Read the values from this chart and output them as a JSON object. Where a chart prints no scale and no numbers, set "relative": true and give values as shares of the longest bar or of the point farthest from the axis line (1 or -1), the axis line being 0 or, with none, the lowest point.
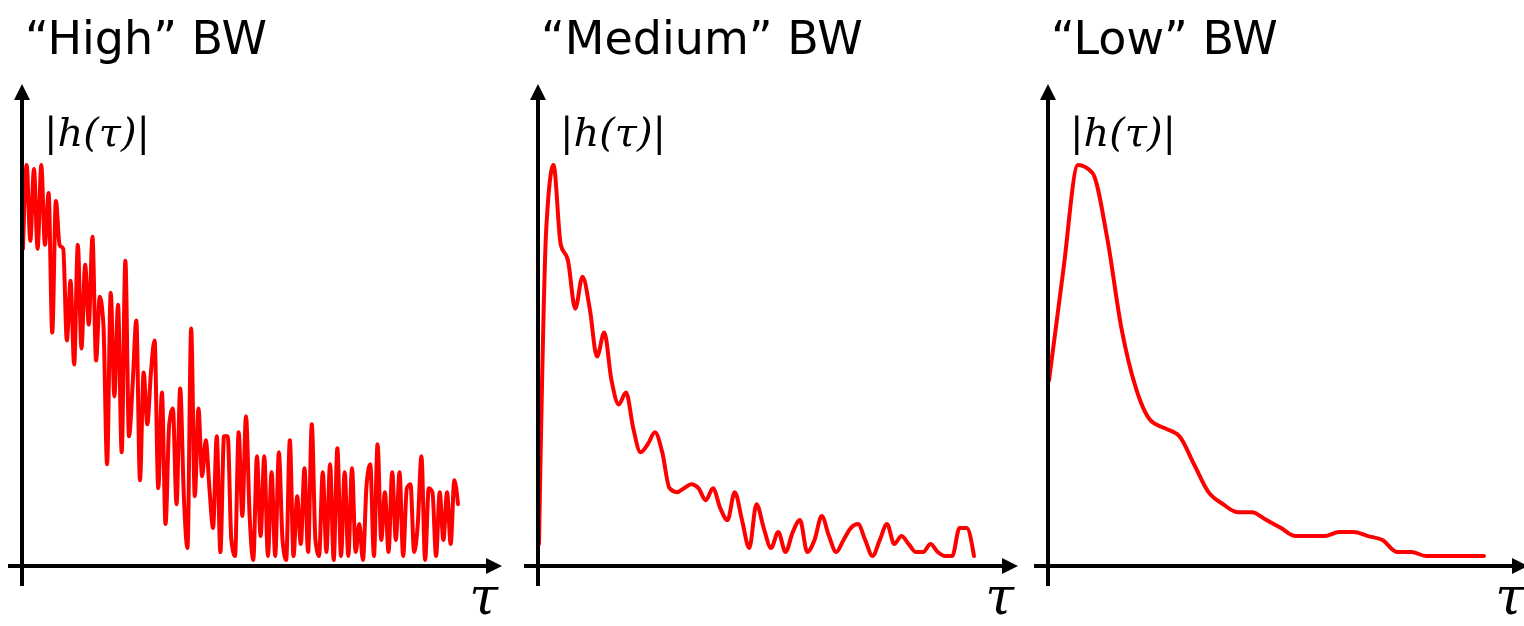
{
  "chart_data": [
    {
      "type": "line",
      "title": "“High” BW",
      "ylabel": "|h(τ)|",
      "xlabel": "τ",
      "relative": true,
      "categories": [
        null,
        null,
        null,
        null,
        null,
        null,
        null,
        null,
        null,
        null,
        null,
        null,
        null,
        null,
        null,
        null,
        null,
        null,
        null,
        null,
        null,
        null,
        null,
        null,
        null,
        null,
        null,
        null,
        null,
        null,
        null,
        null,
        null,
        null,
        null,
        null,
        null,
        null,
        null,
        null,
        null,
        null,
        null,
        null,
        null,
        null,
        null,
        null,
        null,
        null,
        null,
        null,
        null,
        null,
        null,
        null,
        null,
        null,
        null,
        null,
        null,
        null,
        null,
        null,
        null,
        null,
        null,
        null,
        null,
        null,
        null,
        null,
        null,
        null,
        null,
        null,
        null,
        null,
        null,
        null,
        null,
        null,
        null,
        null,
        null,
        null,
        null,
        null,
        null,
        null,
        null,
        null,
        null,
        null,
        null,
        null,
        null,
        null,
        null,
        null,
        null,
        null,
        null,
        null,
        null,
        null,
        null,
        null,
        null,
        null,
        null,
        null,
        null,
        null,
        null,
        null,
        null,
        null,
        null,
        null
      ],
      "series": [
        {
          "color": "#ff0000",
          "values": [
            0.79,
            1.0,
            0.81,
            0.99,
            0.79,
            1.0,
            0.8,
            0.93,
            0.58,
            0.91,
            0.8,
            0.79,
            0.56,
            0.71,
            0.5,
            0.8,
            0.54,
            0.75,
            0.6,
            0.82,
            0.51,
            0.67,
            0.6,
            0.25,
            0.68,
            0.42,
            0.65,
            0.28,
            0.76,
            0.32,
            0.45,
            0.61,
            0.21,
            0.48,
            0.35,
            0.48,
            0.56,
            0.19,
            0.43,
            0.1,
            0.35,
            0.39,
            0.15,
            0.44,
            0.17,
            0.04,
            0.59,
            0.17,
            0.39,
            0.22,
            0.31,
            0.19,
            0.09,
            0.32,
            0.03,
            0.32,
            0.32,
            0.06,
            0.02,
            0.33,
            0.12,
            0.37,
            0.12,
            0.01,
            0.27,
            0.07,
            0.27,
            0.02,
            0.23,
            0.02,
            0.28,
            0.06,
            0.01,
            0.31,
            0.02,
            0.17,
            0.05,
            0.24,
            0.03,
            0.35,
            0.06,
            0.02,
            0.23,
            0.03,
            0.25,
            0.01,
            0.29,
            0.02,
            0.23,
            0.02,
            0.24,
            0.03,
            0.1,
            0.01,
            0.2,
            0.25,
            0.02,
            0.3,
            0.06,
            0.18,
            0.03,
            0.23,
            0.06,
            0.23,
            0.02,
            0.19,
            0.2,
            0.03,
            0.1,
            0.27,
            0.01,
            0.19,
            0.18,
            0.02,
            0.18,
            0.06,
            0.18,
            0.05,
            0.21,
            0.15
          ]
        }
      ]
    },
    {
      "type": "line",
      "title": "“Medium” BW",
      "ylabel": "|h(τ)|",
      "xlabel": "τ",
      "relative": true,
      "categories": [
        null,
        null,
        null,
        null,
        null,
        null,
        null,
        null,
        null,
        null,
        null,
        null,
        null,
        null,
        null,
        null,
        null,
        null,
        null,
        null,
        null,
        null,
        null,
        null,
        null,
        null,
        null,
        null,
        null,
        null,
        null,
        null,
        null,
        null,
        null,
        null,
        null,
        null,
        null,
        null,
        null,
        null,
        null,
        null,
        null,
        null,
        null,
        null,
        null,
        null,
        null,
        null,
        null,
        null,
        null,
        null,
        null,
        null,
        null,
        null,
        null
      ],
      "series": [
        {
          "color": "#ff0000",
          "values": [
            0.05,
            0.84,
            1.0,
            0.8,
            0.76,
            0.64,
            0.72,
            0.64,
            0.52,
            0.58,
            0.46,
            0.4,
            0.43,
            0.34,
            0.28,
            0.3,
            0.33,
            0.28,
            0.19,
            0.18,
            0.19,
            0.2,
            0.19,
            0.16,
            0.19,
            0.14,
            0.11,
            0.18,
            0.11,
            0.04,
            0.15,
            0.09,
            0.04,
            0.08,
            0.03,
            0.08,
            0.11,
            0.03,
            0.06,
            0.12,
            0.07,
            0.03,
            0.06,
            0.09,
            0.1,
            0.06,
            0.02,
            0.06,
            0.1,
            0.05,
            0.07,
            0.05,
            0.03,
            0.03,
            0.05,
            0.03,
            0.02,
            0.02,
            0.09,
            0.09,
            0.02
          ]
        }
      ]
    },
    {
      "type": "line",
      "title": "“Low” BW",
      "ylabel": "|h(τ)|",
      "xlabel": "τ",
      "relative": true,
      "categories": [
        null,
        null,
        null,
        null,
        null,
        null,
        null,
        null,
        null,
        null,
        null,
        null,
        null,
        null,
        null,
        null,
        null,
        null,
        null,
        null,
        null,
        null,
        null,
        null,
        null,
        null,
        null,
        null,
        null,
        null,
        null
      ],
      "series": [
        {
          "color": "#ff0000",
          "values": [
            0.46,
            0.74,
            1.0,
            0.98,
            0.82,
            0.59,
            0.44,
            0.36,
            0.34,
            0.32,
            0.25,
            0.18,
            0.15,
            0.13,
            0.13,
            0.11,
            0.09,
            0.07,
            0.07,
            0.07,
            0.08,
            0.08,
            0.07,
            0.06,
            0.03,
            0.03,
            0.02,
            0.02,
            0.02,
            0.02,
            0.02
          ]
        }
      ]
    }
  ]
}
